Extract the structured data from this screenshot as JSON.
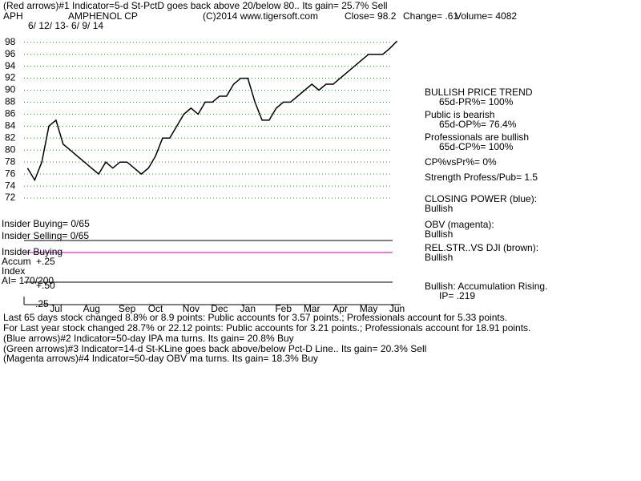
{
  "header": {
    "indicator1": "(Red arrows)#1 Indicator=5-d St-PctD goes back above 20/below 80.. Its gain= 25.7% Sell",
    "symbol": "APH",
    "name": "AMPHENOL CP",
    "copyright": "(C)2014 www.tigersoft.com",
    "close": "Close=  98.2",
    "change": "Change= .61",
    "volume": "Volume= 4082",
    "dates": "6/ 12/ 13-  6/ 9/ 14"
  },
  "chart_data": {
    "type": "line",
    "categories": [
      null,
      null,
      null,
      null,
      "Jul",
      null,
      null,
      null,
      null,
      "Aug",
      null,
      null,
      null,
      null,
      "Sep",
      null,
      null,
      null,
      "Oct",
      null,
      null,
      null,
      null,
      "Nov",
      null,
      null,
      null,
      "Dec",
      null,
      null,
      null,
      "Jan",
      null,
      null,
      null,
      null,
      "Feb",
      null,
      null,
      null,
      "Mar",
      null,
      null,
      null,
      "Apr",
      null,
      null,
      null,
      "May",
      null,
      null,
      null,
      "Jun"
    ],
    "values": [
      77,
      75,
      78,
      84,
      85,
      81,
      80,
      79,
      78,
      77,
      76,
      78,
      77,
      78,
      78,
      77,
      76,
      77,
      79,
      82,
      82,
      84,
      86,
      87,
      86,
      88,
      88,
      89,
      89,
      91,
      92,
      92,
      88,
      85,
      85,
      87,
      88,
      88,
      89,
      90,
      91,
      90,
      91,
      91,
      92,
      93,
      94,
      95,
      96,
      96,
      96,
      97,
      98.2
    ],
    "color": "#000000",
    "ylim": [
      70.8,
      99.7
    ],
    "yticks": [
      72,
      74,
      76,
      78,
      80,
      82,
      84,
      86,
      88,
      90,
      92,
      94,
      96,
      98
    ],
    "grid": true,
    "grid_color": "#00a000"
  },
  "side_notes": [
    "BULLISH PRICE TREND",
    "65d-PR%= 100%",
    "Public is bearish",
    "65d-OP%= 76.4%",
    "Professionals are bullish",
    "65d-CP%= 100%",
    "CP%vsPr%=  0%",
    "Strength Profess/Pub= 1.5",
    "CLOSING POWER (blue):",
    "Bullish",
    "OBV (magenta):",
    "Bullish",
    "REL.STR..VS DJI (brown):",
    "Bullish",
    "Bullish: Accumulation Rising.",
    "IP=  .219"
  ],
  "panel_labels": [
    "Insider Buying= 0/65",
    "Insider Selling= 0/65",
    "Insider Buying",
    "Accum",
    "Index",
    "AI= 170/200",
    "+.50",
    "+.25",
    "-.25"
  ],
  "footer": [
    "Last 65 days stock changed  8.8% or  8.9 points:  Public accounts for  3.57 points.;  Professionals account for  5.33 points.",
    "For Last year stock changed  28.7% or  22.12 points:  Public accounts for  3.21 points.;  Professionals account for  18.91 points.",
    "(Blue arrows)#2 Indicator=50-day IPA ma turns. Its gain= 20.8% Buy",
    "(Green arrows)#3 Indicator=14-d St-KLine goes back above/below Pct-D Line.. Its gain= 20.3% Sell",
    "(Magenta arrows)#4 Indicator=50-day OBV ma turns. Its gain= 18.3% Buy"
  ]
}
